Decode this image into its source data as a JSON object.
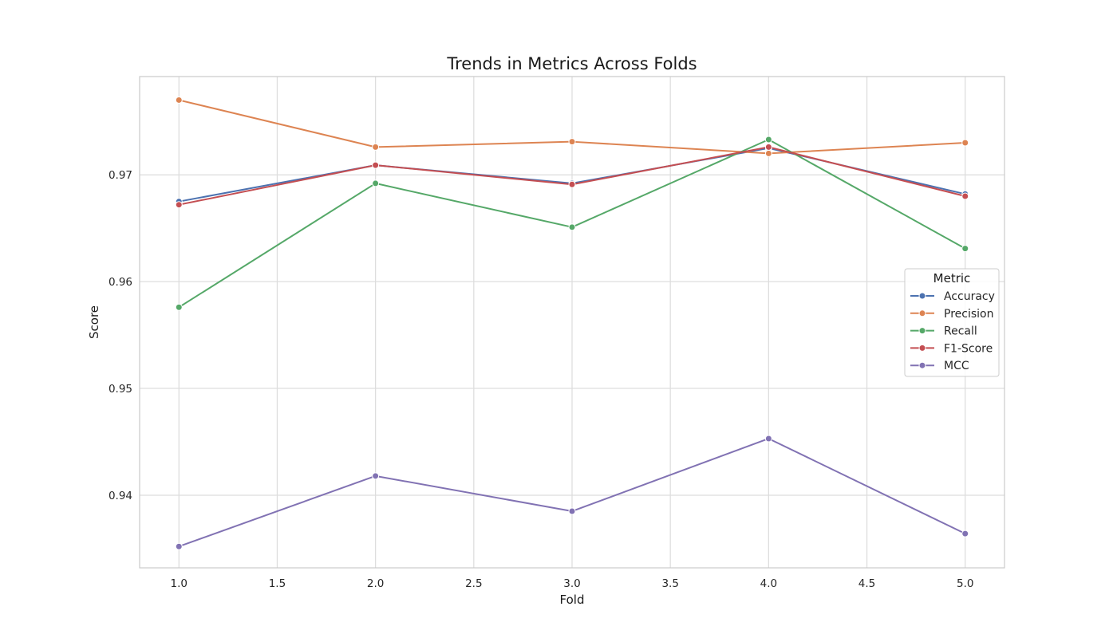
{
  "chart_data": {
    "type": "line",
    "title": "Trends in Metrics Across Folds",
    "xlabel": "Fold",
    "ylabel": "Score",
    "x": [
      1,
      2,
      3,
      4,
      5
    ],
    "xlim": [
      0.8,
      5.2
    ],
    "ylim": [
      0.9332,
      0.9792
    ],
    "xticks": [
      1.0,
      1.5,
      2.0,
      2.5,
      3.0,
      3.5,
      4.0,
      4.5,
      5.0
    ],
    "xtick_labels": [
      "1.0",
      "1.5",
      "2.0",
      "2.5",
      "3.0",
      "3.5",
      "4.0",
      "4.5",
      "5.0"
    ],
    "yticks": [
      0.94,
      0.95,
      0.96,
      0.97
    ],
    "ytick_labels": [
      "0.94",
      "0.95",
      "0.96",
      "0.97"
    ],
    "grid": true,
    "legend_title": "Metric",
    "legend_position": "center-right",
    "series": [
      {
        "name": "Accuracy",
        "color": "#4c72b0",
        "values": [
          0.9675,
          0.9709,
          0.9692,
          0.9725,
          0.9682
        ]
      },
      {
        "name": "Precision",
        "color": "#dd8452",
        "values": [
          0.977,
          0.9726,
          0.9731,
          0.972,
          0.973
        ]
      },
      {
        "name": "Recall",
        "color": "#55a868",
        "values": [
          0.9576,
          0.9692,
          0.9651,
          0.9733,
          0.9631
        ]
      },
      {
        "name": "F1-Score",
        "color": "#c44e52",
        "values": [
          0.9672,
          0.9709,
          0.9691,
          0.9726,
          0.968
        ]
      },
      {
        "name": "MCC",
        "color": "#8172b3",
        "values": [
          0.9352,
          0.9418,
          0.9385,
          0.9453,
          0.9364
        ]
      }
    ]
  }
}
